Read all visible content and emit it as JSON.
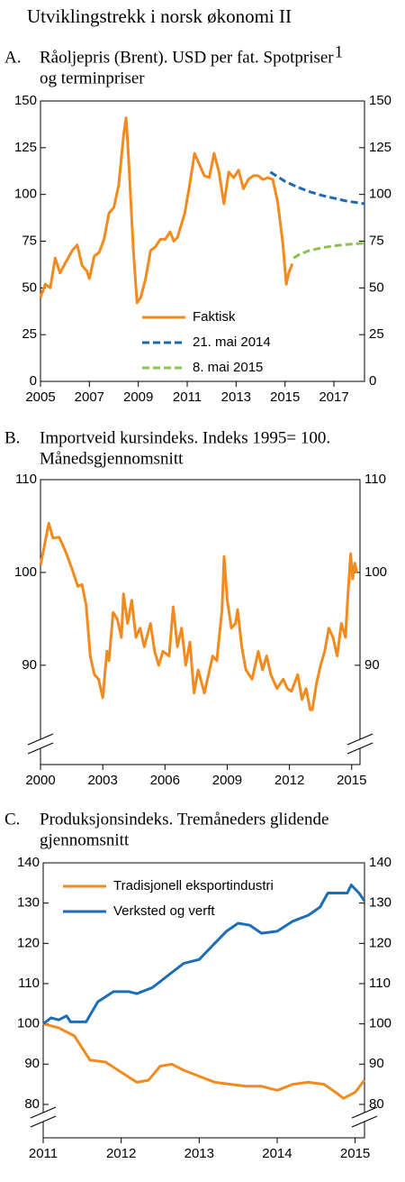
{
  "title": "Utviklingstrekk i norsk økonomi II",
  "chart_data": [
    {
      "type": "line",
      "panel": "A.",
      "title": [
        "Råoljepris (Brent). USD per fat. Spotpriser",
        "og terminpriser"
      ],
      "title_note": "1",
      "xlim": [
        2005,
        2018.25
      ],
      "xticks": [
        2005,
        2007,
        2009,
        2011,
        2013,
        2015,
        2017
      ],
      "ylim": [
        0,
        150
      ],
      "yticks": [
        0,
        25,
        50,
        75,
        100,
        125,
        150
      ],
      "right_axis": true,
      "axis_break": false,
      "legend": "lower center",
      "series": [
        {
          "name": "Faktisk",
          "color": "#f28a1e",
          "dashed": false,
          "x": [
            2005.0,
            2005.2,
            2005.4,
            2005.6,
            2005.8,
            2006.0,
            2006.3,
            2006.5,
            2006.7,
            2006.9,
            2007.0,
            2007.2,
            2007.4,
            2007.6,
            2007.8,
            2008.0,
            2008.2,
            2008.4,
            2008.5,
            2008.6,
            2008.8,
            2008.95,
            2009.1,
            2009.3,
            2009.5,
            2009.7,
            2009.9,
            2010.1,
            2010.3,
            2010.45,
            2010.6,
            2010.9,
            2011.1,
            2011.3,
            2011.5,
            2011.7,
            2011.9,
            2012.1,
            2012.3,
            2012.5,
            2012.7,
            2012.9,
            2013.1,
            2013.3,
            2013.5,
            2013.7,
            2013.9,
            2014.1,
            2014.3,
            2014.5,
            2014.7,
            2014.9,
            2015.05,
            2015.15,
            2015.3
          ],
          "values": [
            45,
            52,
            50,
            66,
            58,
            63,
            70,
            73,
            62,
            59,
            55,
            67,
            69,
            76,
            90,
            93,
            105,
            132,
            141,
            120,
            70,
            42,
            45,
            55,
            70,
            72,
            76,
            76,
            80,
            75,
            77,
            90,
            105,
            122,
            116,
            110,
            109,
            122,
            112,
            95,
            112,
            109,
            113,
            103,
            108,
            110,
            110,
            108,
            109,
            108,
            96,
            75,
            52,
            58,
            63
          ]
        },
        {
          "name": "21. mai 2014",
          "color": "#1e69b4",
          "dashed": true,
          "x": [
            2014.4,
            2015.0,
            2015.5,
            2016.0,
            2016.5,
            2017.0,
            2017.5,
            2018.25
          ],
          "values": [
            112,
            107,
            104,
            101.5,
            99.5,
            98,
            96.5,
            95
          ]
        },
        {
          "name": "8. mai 2015",
          "color": "#8cc350",
          "dashed": true,
          "x": [
            2015.35,
            2015.6,
            2016.0,
            2016.5,
            2017.0,
            2017.5,
            2018.25
          ],
          "values": [
            66,
            68,
            70,
            71.5,
            72.5,
            73.2,
            74
          ]
        }
      ]
    },
    {
      "type": "line",
      "panel": "B.",
      "title": [
        "Importveid kursindeks. Indeks 1995= 100.",
        "Månedsgjennomsnitt"
      ],
      "xlim": [
        2000,
        2015.4
      ],
      "xticks": [
        2000,
        2003,
        2006,
        2009,
        2012,
        2015
      ],
      "ylim": [
        79.3,
        110
      ],
      "yticks": [
        90,
        100,
        110
      ],
      "right_axis": true,
      "axis_break": true,
      "series": [
        {
          "color": "#f28a1e",
          "dashed": false,
          "x": [
            2000.0,
            2000.2,
            2000.4,
            2000.6,
            2000.9,
            2001.2,
            2001.5,
            2001.8,
            2002.0,
            2002.2,
            2002.4,
            2002.6,
            2002.8,
            2003.0,
            2003.2,
            2003.3,
            2003.5,
            2003.7,
            2003.9,
            2004.0,
            2004.2,
            2004.4,
            2004.6,
            2004.8,
            2005.0,
            2005.3,
            2005.5,
            2005.7,
            2005.9,
            2006.2,
            2006.4,
            2006.6,
            2006.8,
            2007.0,
            2007.2,
            2007.4,
            2007.6,
            2007.9,
            2008.1,
            2008.3,
            2008.5,
            2008.75,
            2008.85,
            2009.0,
            2009.2,
            2009.4,
            2009.5,
            2009.7,
            2009.9,
            2010.2,
            2010.5,
            2010.7,
            2010.9,
            2011.1,
            2011.4,
            2011.7,
            2011.9,
            2012.1,
            2012.4,
            2012.6,
            2012.8,
            2013.0,
            2013.1,
            2013.3,
            2013.5,
            2013.7,
            2013.9,
            2014.1,
            2014.3,
            2014.5,
            2014.7,
            2014.8,
            2014.95,
            2015.05,
            2015.15,
            2015.25
          ],
          "values": [
            100.8,
            103,
            105.3,
            103.7,
            103.8,
            102.3,
            100.5,
            98.5,
            98.7,
            96.5,
            91,
            89,
            88.5,
            86.5,
            91.5,
            90.5,
            95.7,
            95,
            93,
            97.7,
            94.5,
            97,
            93,
            94,
            92,
            94.5,
            91.5,
            90,
            91.5,
            91,
            96.3,
            92,
            94,
            90,
            92.5,
            87,
            89.5,
            87,
            89,
            91,
            90.5,
            96,
            101.7,
            97,
            94,
            94.5,
            96,
            92,
            89.5,
            88.5,
            91.5,
            89.5,
            91,
            89,
            87.5,
            88.5,
            87.5,
            87.2,
            89,
            86.3,
            87.5,
            85.2,
            85.2,
            88,
            90,
            91.5,
            94,
            93,
            91,
            94.5,
            93,
            97,
            102,
            99.3,
            101,
            100
          ]
        }
      ]
    },
    {
      "type": "line",
      "panel": "C.",
      "title": [
        "Produksjonsindeks.  Tremåneders glidende",
        "gjennomsnitt"
      ],
      "xlim": [
        2011,
        2015.12
      ],
      "xticks": [
        2011,
        2012,
        2013,
        2014,
        2015
      ],
      "ylim": [
        71.7,
        140
      ],
      "yticks": [
        80,
        90,
        100,
        110,
        120,
        130,
        140
      ],
      "right_axis": true,
      "axis_break": true,
      "legend": "upper left",
      "series": [
        {
          "name": "Tradisjonell eksportindustri",
          "color": "#f28a1e",
          "dashed": false,
          "x": [
            2011.0,
            2011.2,
            2011.4,
            2011.6,
            2011.8,
            2012.0,
            2012.2,
            2012.35,
            2012.5,
            2012.65,
            2012.8,
            2013.0,
            2013.2,
            2013.4,
            2013.6,
            2013.8,
            2014.0,
            2014.2,
            2014.4,
            2014.6,
            2014.75,
            2014.85,
            2015.0,
            2015.12
          ],
          "values": [
            100,
            99,
            97,
            91,
            90.5,
            88,
            85.5,
            86,
            89.5,
            90,
            88.5,
            87,
            85.5,
            85,
            84.5,
            84.5,
            83.5,
            85,
            85.5,
            85,
            83,
            81.5,
            83,
            86
          ]
        },
        {
          "name": "Verksted og verft",
          "color": "#1c6cb6",
          "dashed": false,
          "x": [
            2011.0,
            2011.1,
            2011.2,
            2011.3,
            2011.35,
            2011.55,
            2011.7,
            2011.9,
            2012.1,
            2012.2,
            2012.4,
            2012.6,
            2012.8,
            2013.0,
            2013.2,
            2013.35,
            2013.5,
            2013.65,
            2013.8,
            2014.0,
            2014.2,
            2014.4,
            2014.55,
            2014.65,
            2014.9,
            2014.95,
            2015.05,
            2015.12
          ],
          "values": [
            100,
            101.5,
            101,
            102,
            100.5,
            100.5,
            105.5,
            108,
            108,
            107.5,
            109,
            112,
            115,
            116,
            120,
            123,
            125,
            124.5,
            122.5,
            123,
            125.5,
            127,
            129,
            132.5,
            132.5,
            134.5,
            132.5,
            130.5
          ]
        }
      ]
    }
  ]
}
